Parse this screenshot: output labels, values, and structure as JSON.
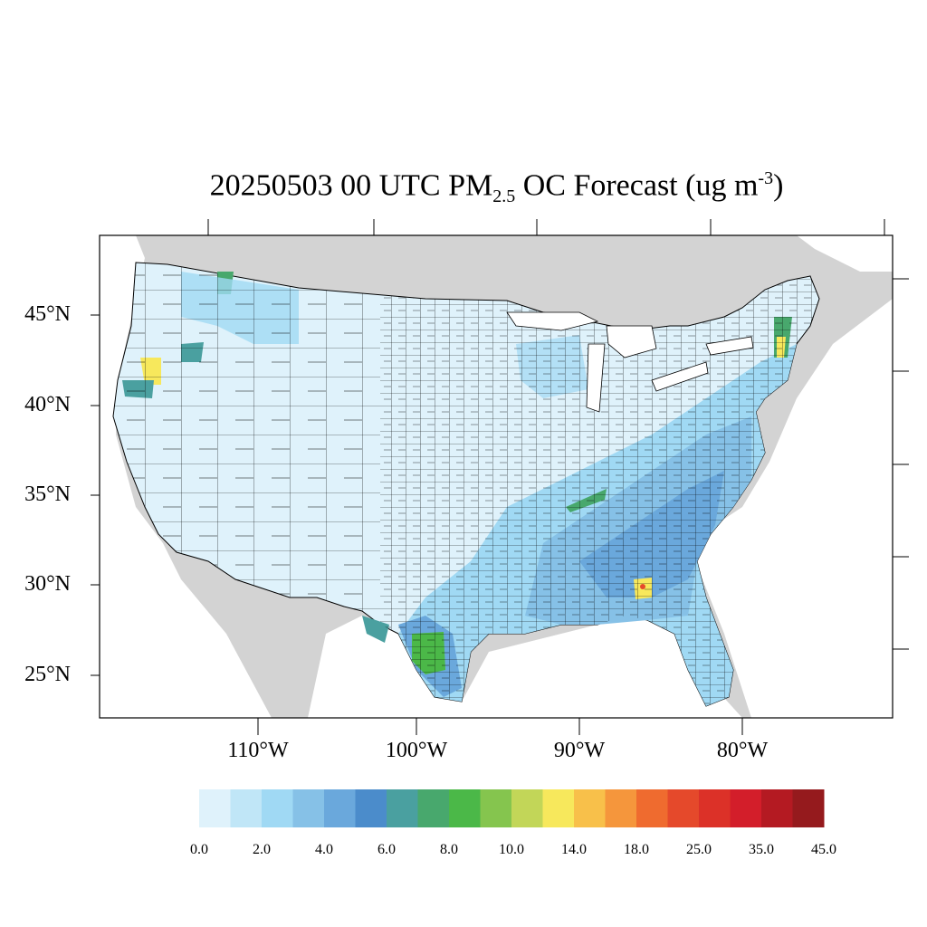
{
  "title": {
    "prefix": "20250503 00 UTC PM",
    "subscript": "2.5",
    "middle": " OC Forecast (ug m",
    "superscript": "-3",
    "suffix": ")"
  },
  "map": {
    "lat_labels": [
      "45°N",
      "40°N",
      "35°N",
      "30°N",
      "25°N"
    ],
    "lon_labels": [
      "110°W",
      "100°W",
      "90°W",
      "80°W"
    ],
    "colors": {
      "land_outside": "#d3d3d3",
      "water": "#ffffff",
      "background_region": "#dff2fb",
      "county_border": "#000000"
    }
  },
  "colorbar": {
    "labels": [
      "0.0",
      "2.0",
      "4.0",
      "6.0",
      "8.0",
      "10.0",
      "14.0",
      "18.0",
      "25.0",
      "35.0",
      "45.0"
    ],
    "colors": [
      "#dff2fb",
      "#c0e6f7",
      "#a0d9f4",
      "#86c1e7",
      "#6aa8dc",
      "#4b8ccb",
      "#4aa0a0",
      "#48a86d",
      "#4bb848",
      "#85c54e",
      "#c2d658",
      "#f7e85c",
      "#f8c04a",
      "#f5963c",
      "#ef6b2f",
      "#e5492b",
      "#dc3128",
      "#d31e2a",
      "#b41a22",
      "#951a1d"
    ]
  }
}
